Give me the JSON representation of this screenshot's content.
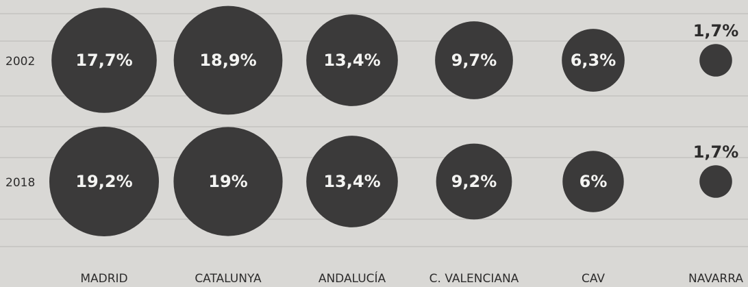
{
  "chart_data": {
    "type": "bubble",
    "categories": [
      "MADRID",
      "CATALUNYA",
      "ANDALUCÍA",
      "C. VALENCIANA",
      "CAV",
      "NAVARRA"
    ],
    "color": "#3b3a3a",
    "series": [
      {
        "name": "2002",
        "values": [
          17.7,
          18.9,
          13.4,
          9.7,
          6.3,
          1.7
        ],
        "value_labels": [
          "17,7%",
          "18,9%",
          "13,4%",
          "9,7%",
          "6,3%",
          "1,7%"
        ]
      },
      {
        "name": "2018",
        "values": [
          19.2,
          19,
          13.4,
          9.2,
          6,
          1.7
        ],
        "value_labels": [
          "19,2%",
          "19%",
          "13,4%",
          "9,2%",
          "6%",
          "1,7%"
        ]
      }
    ]
  }
}
